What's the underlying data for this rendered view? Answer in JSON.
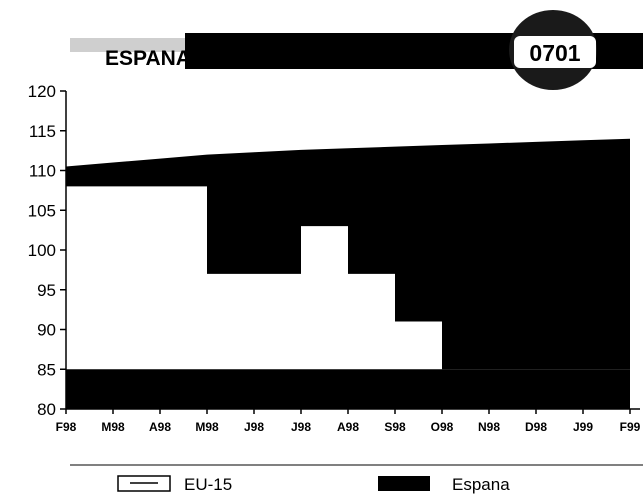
{
  "header": {
    "title": "ESPANA",
    "code": "0701"
  },
  "chart_data": {
    "type": "area",
    "title": "ESPANA",
    "categories": [
      "F98",
      "M98",
      "A98",
      "M98",
      "J98",
      "J98",
      "A98",
      "S98",
      "O98",
      "N98",
      "D98",
      "J99",
      "F99"
    ],
    "ylim": [
      80,
      120
    ],
    "yticks": [
      80,
      85,
      90,
      95,
      100,
      105,
      110,
      115,
      120
    ],
    "grid": false,
    "legend": "bottom",
    "series": [
      {
        "name": "EU-15",
        "values": [
          108,
          108,
          108,
          97,
          97,
          103,
          97,
          91,
          85,
          85,
          85,
          85,
          85
        ],
        "color": "#ffffff"
      },
      {
        "name": "Espana",
        "values": [
          110.5,
          111,
          111.5,
          112,
          112.3,
          112.6,
          112.8,
          113,
          113.2,
          113.4,
          113.6,
          113.8,
          114
        ],
        "color": "#000000"
      }
    ]
  }
}
